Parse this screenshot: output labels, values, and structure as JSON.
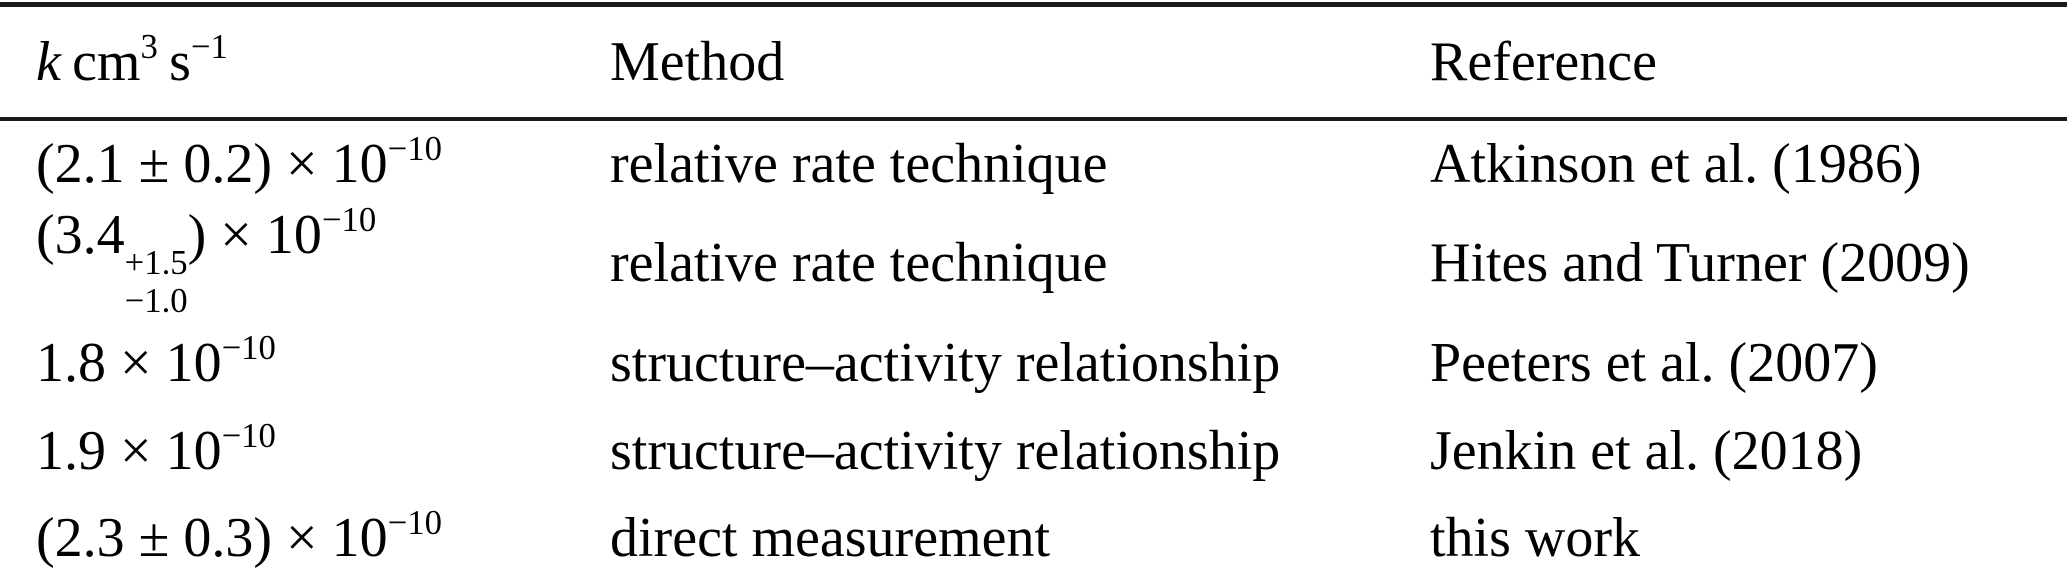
{
  "table": {
    "header": {
      "k_symbol": "k",
      "k_unit_cm": "cm",
      "k_unit_cm_exp": "3",
      "k_unit_s": "s",
      "k_unit_s_exp": "−1",
      "method_label": "Method",
      "reference_label": "Reference"
    },
    "rows": [
      {
        "k": {
          "main": "(2.1 ± 0.2) × 10",
          "exp": "−10"
        },
        "method": "relative rate technique",
        "reference": "Atkinson et al. (1986)"
      },
      {
        "k": {
          "pre": "(3.4",
          "upper": "+1.5",
          "lower": "−1.0",
          "post": ") × 10",
          "exp": "−10"
        },
        "method": "relative rate technique",
        "reference": "Hites and Turner (2009)"
      },
      {
        "k": {
          "main": "1.8 × 10",
          "exp": "−10"
        },
        "method": "structure–activity relationship",
        "reference": "Peeters et al. (2007)"
      },
      {
        "k": {
          "main": "1.9 × 10",
          "exp": "−10"
        },
        "method": "structure–activity relationship",
        "reference": "Jenkin et al. (2018)"
      },
      {
        "k": {
          "main": "(2.3 ± 0.3) × 10",
          "exp": "−10"
        },
        "method": "direct measurement",
        "reference": "this work"
      }
    ]
  },
  "colors": {
    "rule": "#1b1b1b",
    "text": "#000000",
    "background": "#ffffff"
  }
}
